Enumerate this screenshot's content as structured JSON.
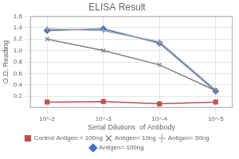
{
  "chart_data": {
    "type": "line",
    "title": "ELISA Result",
    "x_label": "Serial Dilutions  of Antibody",
    "y_label": "O.D. Reading",
    "x": [
      0.01,
      0.001,
      0.0001,
      1e-05
    ],
    "xlim": [
      0.02,
      5e-06
    ],
    "xticks": [
      {
        "value": 0.01,
        "label": "10^-2"
      },
      {
        "value": 0.001,
        "label": "10^-3"
      },
      {
        "value": 0.0001,
        "label": "10^-4"
      },
      {
        "value": 1e-05,
        "label": "10^-5"
      }
    ],
    "log": "x",
    "ylim": [
      0,
      1.6
    ],
    "yticks": [
      0.2,
      0.4,
      0.6,
      0.8,
      {
        "value": 1.0,
        "label": "1.0"
      },
      1.2,
      1.4,
      1.6
    ],
    "grid": true,
    "legend": "bottom",
    "series": [
      {
        "name": "Control Antigen = 100ng",
        "color": "#c0504d",
        "marker": "square",
        "line_style": "solid",
        "values": [
          0.1,
          0.11,
          0.07,
          0.1
        ]
      },
      {
        "name": "Antigen= 10ng",
        "color": "#808080",
        "marker": "x",
        "line_style": "solid",
        "values": [
          1.2,
          1.0,
          0.75,
          0.3
        ]
      },
      {
        "name": "Antigen= 50ng",
        "color": "#a0a0a0",
        "marker": "plus",
        "line_style": "solid",
        "values": [
          1.38,
          1.35,
          1.15,
          0.31
        ]
      },
      {
        "name": "Antigen= 100ng",
        "color": "#4472c4",
        "marker": "diamond",
        "line_style": "solid",
        "values": [
          1.35,
          1.38,
          1.13,
          0.29
        ]
      }
    ]
  }
}
